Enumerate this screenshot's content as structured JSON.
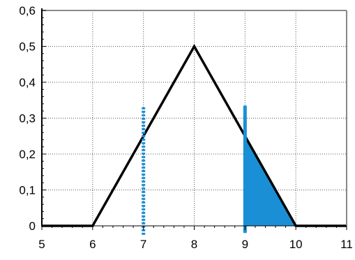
{
  "chart_data": {
    "type": "line",
    "title": "",
    "xlabel": "",
    "ylabel": "",
    "xlim": [
      5,
      11
    ],
    "ylim": [
      0,
      0.6
    ],
    "grid": true,
    "x_ticks": [
      5,
      6,
      7,
      8,
      9,
      10,
      11
    ],
    "x_tick_labels": [
      "5",
      "6",
      "7",
      "8",
      "9",
      "10",
      "11"
    ],
    "y_ticks": [
      0,
      0.1,
      0.2,
      0.3,
      0.4,
      0.5,
      0.6
    ],
    "y_tick_labels": [
      "0",
      "0,1",
      "0,2",
      "0,3",
      "0,4",
      "0,5",
      "0,6"
    ],
    "series": [
      {
        "kind": "line",
        "color": "#000000",
        "points": [
          [
            5,
            0
          ],
          [
            6,
            0
          ],
          [
            8,
            0.5
          ],
          [
            10,
            0
          ],
          [
            11,
            0
          ]
        ]
      },
      {
        "kind": "vline-dotted",
        "color": "#1a8fd6",
        "x": 7,
        "y_range": [
          -0.025,
          0.33
        ]
      },
      {
        "kind": "vline-solid",
        "color": "#1a8fd6",
        "x": 9,
        "y_range": [
          -0.02,
          0.335
        ]
      },
      {
        "kind": "area",
        "color": "#1a8fd6",
        "points": [
          [
            9,
            0
          ],
          [
            9,
            0.25
          ],
          [
            10,
            0
          ]
        ]
      }
    ]
  }
}
